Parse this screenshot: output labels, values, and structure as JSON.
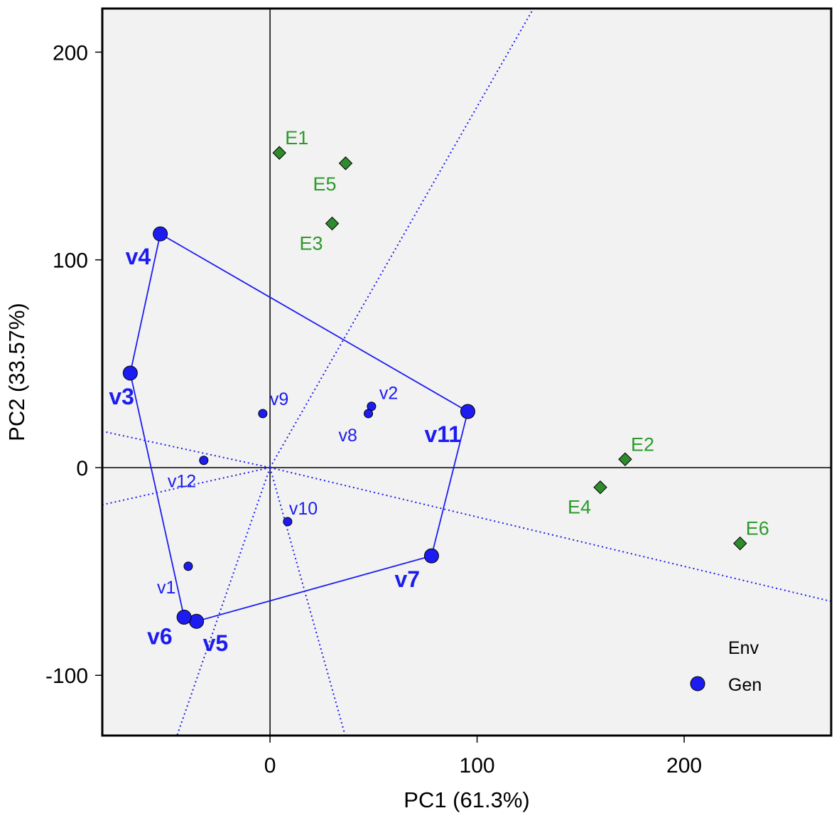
{
  "chart_data": {
    "type": "scatter",
    "subtype": "GGE biplot (which-won-where)",
    "xlabel": "PC1 (61.3%)",
    "ylabel": "PC2 (33.57%)",
    "xlim": [
      -81,
      271
    ],
    "ylim": [
      -129,
      221
    ],
    "xticks": [
      0,
      100,
      200
    ],
    "yticks": [
      -100,
      0,
      100,
      200
    ],
    "xtick_labels": [
      "0",
      "100",
      "200"
    ],
    "ytick_labels": [
      "-100",
      "0",
      "100",
      "200"
    ],
    "genotypes": [
      {
        "name": "v1",
        "x": -39.5,
        "y": -47.5,
        "vertex": false
      },
      {
        "name": "v2",
        "x": 49,
        "y": 29.5,
        "vertex": false
      },
      {
        "name": "v3",
        "x": -67.5,
        "y": 45.5,
        "vertex": true
      },
      {
        "name": "v4",
        "x": -53,
        "y": 112.5,
        "vertex": true
      },
      {
        "name": "v5",
        "x": -35.5,
        "y": -74,
        "vertex": true
      },
      {
        "name": "v6",
        "x": -41.5,
        "y": -72,
        "vertex": true
      },
      {
        "name": "v7",
        "x": 78,
        "y": -42.5,
        "vertex": true
      },
      {
        "name": "v8",
        "x": 47.5,
        "y": 26,
        "vertex": false
      },
      {
        "name": "v9",
        "x": -3.5,
        "y": 26,
        "vertex": false
      },
      {
        "name": "v10",
        "x": 8.5,
        "y": -26,
        "vertex": false
      },
      {
        "name": "v11",
        "x": 95.5,
        "y": 27,
        "vertex": true
      },
      {
        "name": "v12",
        "x": -32,
        "y": 3.5,
        "vertex": false
      }
    ],
    "environments": [
      {
        "name": "E1",
        "x": 4.5,
        "y": 151.5
      },
      {
        "name": "E2",
        "x": 171.5,
        "y": 4
      },
      {
        "name": "E3",
        "x": 30,
        "y": 117.5
      },
      {
        "name": "E4",
        "x": 159.5,
        "y": -9.5
      },
      {
        "name": "E5",
        "x": 36.5,
        "y": 146.5
      },
      {
        "name": "E6",
        "x": 227,
        "y": -36.5
      }
    ],
    "polygon_order": [
      "v4",
      "v11",
      "v7",
      "v5",
      "v6",
      "v3"
    ],
    "sector_lines": [
      {
        "from": "v4v11",
        "to": [
          127.2,
          221
        ]
      },
      {
        "from": "v11v7",
        "to": [
          271,
          -64.4
        ]
      },
      {
        "from": "v7v5",
        "to": [
          36.3,
          -129
        ]
      },
      {
        "from": "v5v6",
        "to": [
          -44.9,
          -129
        ]
      },
      {
        "from": "v6v3",
        "to": [
          -81,
          -17.9
        ]
      },
      {
        "from": "v3v4",
        "to": [
          -81,
          17.5
        ]
      }
    ],
    "legend": {
      "position": "bottom-right",
      "entries": [
        "Env",
        "Gen"
      ]
    },
    "colors": {
      "genotype": "#1c1cf0",
      "environment_fill": "#2e8b2e",
      "environment_label": "#2b9a2b",
      "panel_bg": "#f2f2f2"
    }
  }
}
